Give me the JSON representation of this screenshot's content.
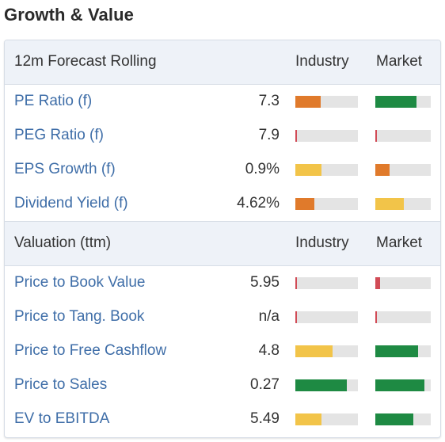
{
  "title": "Growth & Value",
  "colors": {
    "green": "#1e8a43",
    "orange": "#e07a2b",
    "yellow": "#f2c449",
    "red": "#d14b56"
  },
  "sections": [
    {
      "title": "12m Forecast Rolling",
      "col_industry": "Industry",
      "col_market": "Market",
      "rows": [
        {
          "label": "PE Ratio (f)",
          "value": "7.3",
          "industry": {
            "level": 0.4,
            "color": "orange"
          },
          "market": {
            "level": 0.74,
            "color": "green"
          }
        },
        {
          "label": "PEG Ratio (f)",
          "value": "7.9",
          "industry": {
            "level": 0.03,
            "color": "red"
          },
          "market": {
            "level": 0.03,
            "color": "red"
          }
        },
        {
          "label": "EPS Growth (f)",
          "value": "0.9%",
          "industry": {
            "level": 0.42,
            "color": "yellow"
          },
          "market": {
            "level": 0.25,
            "color": "orange"
          }
        },
        {
          "label": "Dividend Yield (f)",
          "value": "4.62%",
          "industry": {
            "level": 0.3,
            "color": "orange"
          },
          "market": {
            "level": 0.52,
            "color": "yellow"
          }
        }
      ]
    },
    {
      "title": "Valuation (ttm)",
      "col_industry": "Industry",
      "col_market": "Market",
      "rows": [
        {
          "label": "Price to Book Value",
          "value": "5.95",
          "industry": {
            "level": 0.03,
            "color": "red"
          },
          "market": {
            "level": 0.09,
            "color": "red"
          }
        },
        {
          "label": "Price to Tang. Book",
          "value": "n/a",
          "industry": {
            "level": 0.03,
            "color": "red"
          },
          "market": {
            "level": 0.03,
            "color": "red"
          }
        },
        {
          "label": "Price to Free Cashflow",
          "value": "4.8",
          "industry": {
            "level": 0.6,
            "color": "yellow"
          },
          "market": {
            "level": 0.77,
            "color": "green"
          }
        },
        {
          "label": "Price to Sales",
          "value": "0.27",
          "industry": {
            "level": 0.82,
            "color": "green"
          },
          "market": {
            "level": 0.89,
            "color": "green"
          }
        },
        {
          "label": "EV to EBITDA",
          "value": "5.49",
          "industry": {
            "level": 0.42,
            "color": "yellow"
          },
          "market": {
            "level": 0.69,
            "color": "green"
          }
        }
      ]
    }
  ]
}
